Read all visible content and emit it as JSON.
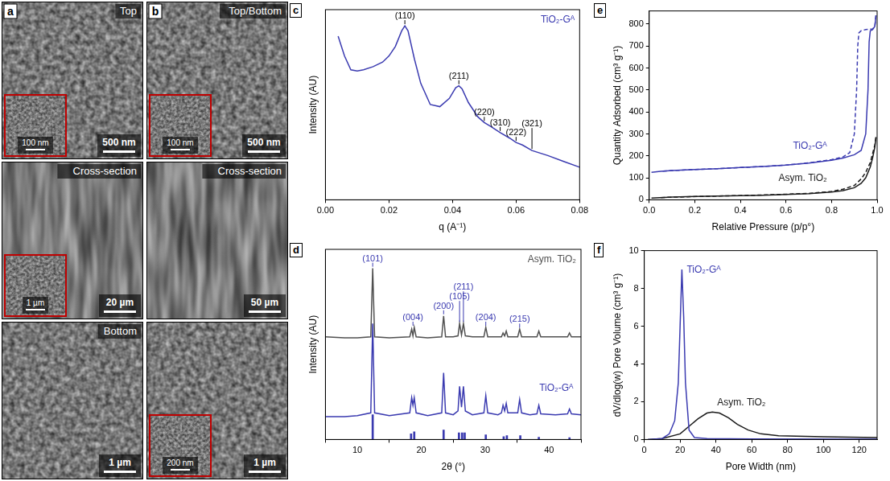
{
  "panels": [
    {
      "panel": "a",
      "tiles": [
        {
          "label": "Top",
          "scale_bar": "500 nm",
          "inset_scale_bar": "100 nm"
        },
        {
          "label": "Cross-section",
          "scale_bar": "20 µm",
          "inset_scale_bar": "1 µm"
        },
        {
          "label": "Bottom",
          "scale_bar": "1 µm"
        }
      ]
    },
    {
      "panel": "b",
      "tiles": [
        {
          "label": "Top/Bottom",
          "scale_bar": "500 nm",
          "inset_scale_bar": "100 nm"
        },
        {
          "label": "Cross-section",
          "scale_bar": "50 µm"
        },
        {
          "scale_bar": "1 µm",
          "inset_scale_bar": "200 nm"
        }
      ]
    }
  ],
  "chart_data": [
    {
      "panel": "c",
      "type": "line",
      "x_label": "q (A⁻¹)",
      "y_label": "Intensity (AU)",
      "log": "y",
      "grid": false,
      "tick_labels": "x",
      "xlim": [
        0,
        0.08
      ],
      "xticks": [
        {
          "value": 0,
          "label": "0.00"
        },
        0.02,
        0.04,
        0.06,
        0.08
      ],
      "ylim": [
        2,
        1000
      ],
      "series": [
        {
          "name": "TiO₂-Gᴬ",
          "color": "#3a3ab0",
          "x": [
            0.004,
            0.006,
            0.008,
            0.01,
            0.012,
            0.015,
            0.018,
            0.02,
            0.022,
            0.024,
            0.025,
            0.026,
            0.028,
            0.03,
            0.033,
            0.036,
            0.039,
            0.041,
            0.042,
            0.043,
            0.045,
            0.048,
            0.05,
            0.052,
            0.055,
            0.058,
            0.06,
            0.062,
            0.065,
            0.07,
            0.075,
            0.08
          ],
          "values": [
            420,
            220,
            140,
            135,
            140,
            155,
            180,
            220,
            300,
            500,
            590,
            500,
            200,
            90,
            45,
            42,
            55,
            78,
            83,
            75,
            48,
            30,
            25,
            22,
            18,
            15,
            13,
            12,
            10,
            8.5,
            7,
            5.8
          ]
        }
      ],
      "annotations": [
        {
          "text": "(110)",
          "x": 0.025
        },
        {
          "text": "(211)",
          "x": 0.042
        },
        {
          "text": "(220)",
          "x": 0.05
        },
        {
          "text": "(310)",
          "x": 0.055
        },
        {
          "text": "(222)",
          "x": 0.06
        },
        {
          "text": "(321)",
          "x": 0.065
        }
      ]
    },
    {
      "panel": "d",
      "type": "line",
      "x_label": "2θ (°)",
      "y_label": "Intensity (AU)",
      "grid": false,
      "tick_labels": "x",
      "xlim": [
        5,
        45
      ],
      "xticks": [
        10,
        20,
        30,
        40
      ],
      "ylim": [
        0,
        100
      ],
      "x": [
        5,
        8,
        10,
        12.1,
        12.4,
        12.7,
        15,
        18.2,
        18.5,
        18.7,
        18.9,
        19.2,
        21,
        23.2,
        23.5,
        23.8,
        25,
        25.75,
        26.0,
        26.3,
        26.6,
        26.9,
        28,
        29.8,
        30.1,
        30.4,
        32,
        32.55,
        32.8,
        33.05,
        33.3,
        33.55,
        35.1,
        35.4,
        35.7,
        37,
        38.1,
        38.4,
        38.7,
        41,
        42.9,
        43.2,
        43.5,
        45
      ],
      "series": [
        {
          "name": "Asym. TiO₂",
          "color": "#505050",
          "values": [
            54,
            53.5,
            53.5,
            54,
            90,
            54,
            53.5,
            54,
            58,
            54.5,
            59,
            54,
            53.5,
            54,
            65,
            54,
            54,
            54.5,
            61,
            55,
            61,
            54.5,
            54,
            54,
            59,
            54,
            54,
            54,
            56,
            54.5,
            57,
            54,
            54,
            58,
            54,
            54,
            54,
            57,
            54,
            54,
            54,
            56,
            54,
            54
          ]
        },
        {
          "name": "TiO₂-Gᴬ",
          "color": "#3a3ab0",
          "values": [
            12,
            12,
            12.5,
            14,
            61,
            14,
            12.5,
            14,
            22,
            18,
            22,
            14,
            12.5,
            14,
            35,
            14,
            13,
            15,
            28,
            17,
            28,
            15,
            13,
            14,
            23,
            14,
            13,
            14,
            18,
            15,
            19,
            14,
            14,
            21,
            14,
            13,
            13.5,
            18,
            13.5,
            13,
            13.5,
            16,
            13.5,
            13
          ]
        },
        {
          "type": "bar",
          "color": "#3a3ab0",
          "x": [
            12.4,
            18.4,
            18.9,
            23.5,
            25.9,
            26.4,
            26.8,
            30.1,
            32.9,
            33.4,
            35.5,
            38.4,
            43.2
          ],
          "values": [
            13,
            3,
            4,
            5,
            3.5,
            3.5,
            3.5,
            2.5,
            1.5,
            2,
            2,
            1.2,
            1
          ]
        }
      ],
      "annotations": [
        {
          "text": "(101)",
          "x": 12.4,
          "color": "#3a3ab0"
        },
        {
          "text": "(004)",
          "x": 18.7,
          "color": "#3a3ab0"
        },
        {
          "text": "(200)",
          "x": 23.5,
          "color": "#3a3ab0"
        },
        {
          "text": "(105)",
          "x": 26.0,
          "color": "#3a3ab0"
        },
        {
          "text": "(211)",
          "x": 26.6,
          "color": "#3a3ab0"
        },
        {
          "text": "(204)",
          "x": 30.1,
          "color": "#3a3ab0"
        },
        {
          "text": "(215)",
          "x": 35.4,
          "color": "#3a3ab0"
        }
      ]
    },
    {
      "panel": "e",
      "type": "line",
      "x_label": "Relative Pressure (p/p°)",
      "y_label": "Quantity Adsorbed (cm³ g⁻¹)",
      "grid": false,
      "xlim": [
        0,
        1.0
      ],
      "xticks": [
        {
          "value": 0,
          "label": "0.0"
        },
        0.2,
        0.4,
        0.6,
        0.8,
        {
          "value": 1.0,
          "label": "1.0"
        }
      ],
      "ylim": [
        0,
        860
      ],
      "yticks": [
        0,
        100,
        200,
        300,
        400,
        500,
        600,
        700,
        800
      ],
      "series": [
        {
          "name": "TiO₂-Gᴬ",
          "color": "#3a3ab0",
          "line_style": "solid",
          "x": [
            0.01,
            0.05,
            0.1,
            0.2,
            0.3,
            0.4,
            0.5,
            0.6,
            0.7,
            0.8,
            0.85,
            0.9,
            0.93,
            0.95,
            0.96,
            0.965,
            0.97,
            0.98,
            0.99,
            0.995
          ],
          "values": [
            125,
            130,
            133,
            138,
            142,
            147,
            152,
            158,
            167,
            180,
            190,
            205,
            225,
            300,
            500,
            720,
            770,
            775,
            790,
            840
          ]
        },
        {
          "color": "#3a3ab0",
          "line_style": "dashed",
          "x": [
            0.995,
            0.99,
            0.98,
            0.95,
            0.93,
            0.92,
            0.915,
            0.91,
            0.9,
            0.88,
            0.85,
            0.8,
            0.7,
            0.6,
            0.5,
            0.4,
            0.3,
            0.2,
            0.1,
            0.05
          ],
          "values": [
            840,
            790,
            778,
            775,
            770,
            760,
            700,
            500,
            300,
            215,
            195,
            183,
            168,
            158,
            152,
            147,
            142,
            138,
            133,
            130
          ]
        },
        {
          "name": "Asym. TiO₂",
          "color": "#1a1a1a",
          "line_style": "solid",
          "x": [
            0.01,
            0.1,
            0.2,
            0.3,
            0.4,
            0.5,
            0.6,
            0.7,
            0.8,
            0.85,
            0.9,
            0.93,
            0.95,
            0.97,
            0.98,
            0.99,
            0.995
          ],
          "values": [
            8,
            12,
            15,
            17,
            19,
            21,
            24,
            28,
            35,
            42,
            55,
            75,
            100,
            150,
            190,
            240,
            285
          ]
        },
        {
          "color": "#1a1a1a",
          "line_style": "dashed",
          "x": [
            0.995,
            0.99,
            0.98,
            0.97,
            0.95,
            0.93,
            0.9,
            0.85,
            0.8,
            0.7,
            0.5,
            0.3,
            0.1,
            0.05
          ],
          "values": [
            285,
            250,
            210,
            170,
            125,
            95,
            65,
            48,
            38,
            29,
            22,
            17,
            12,
            10
          ]
        }
      ]
    },
    {
      "panel": "f",
      "type": "line",
      "x_label": "Pore Width (nm)",
      "y_label": "dV/dlog(w) Pore Volume (cm³ g⁻¹)",
      "grid": false,
      "xlim": [
        0,
        130
      ],
      "xticks": [
        0,
        20,
        40,
        60,
        80,
        100,
        120
      ],
      "ylim": [
        0,
        10
      ],
      "yticks": [
        0,
        2,
        4,
        6,
        8,
        10
      ],
      "series": [
        {
          "name": "TiO₂-Gᴬ",
          "color": "#3a3ab0",
          "x": [
            2,
            10,
            14,
            17,
            19,
            20,
            21,
            22,
            23,
            25,
            28,
            35,
            60,
            130
          ],
          "values": [
            0,
            0.05,
            0.3,
            1.0,
            3,
            6,
            9,
            6.5,
            3,
            0.5,
            0.1,
            0.05,
            0.03,
            0.02
          ]
        },
        {
          "name": "Asym. TiO₂",
          "color": "#1a1a1a",
          "x": [
            2,
            10,
            20,
            25,
            30,
            35,
            38,
            42,
            47,
            52,
            58,
            65,
            75,
            100,
            130
          ],
          "values": [
            0,
            0.05,
            0.3,
            0.7,
            1.1,
            1.4,
            1.45,
            1.4,
            1.15,
            0.8,
            0.5,
            0.3,
            0.2,
            0.15,
            0.1
          ]
        }
      ]
    }
  ]
}
